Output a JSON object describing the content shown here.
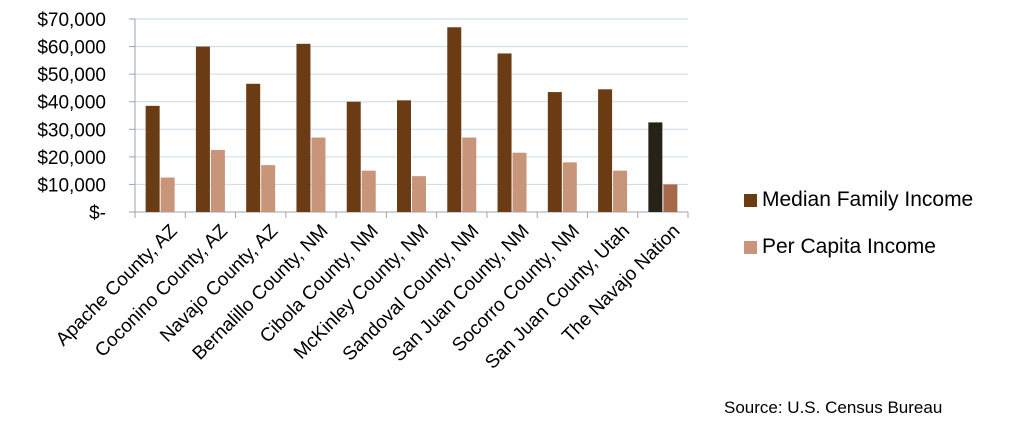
{
  "chart_data": {
    "type": "bar",
    "categories": [
      "Apache County, AZ",
      "Coconino County, AZ",
      "Navajo County, AZ",
      "Bernalillo County, NM",
      "Cibola County, NM",
      "McKinley County, NM",
      "Sandoval County, NM",
      "San Juan County, NM",
      "Socorro County, NM",
      "San Juan County, Utah",
      "The Navajo Nation"
    ],
    "series": [
      {
        "name": "Median Family Income",
        "values": [
          38500,
          60000,
          46500,
          61000,
          40000,
          40500,
          67000,
          57500,
          43500,
          44500,
          32500
        ],
        "color": "#6b3b14",
        "highlight_color": "#262217"
      },
      {
        "name": "Per Capita Income",
        "values": [
          12500,
          22500,
          17000,
          27000,
          15000,
          13000,
          27000,
          21500,
          18000,
          15000,
          10000
        ],
        "color": "#c8957a",
        "highlight_color": "#a8694a"
      }
    ],
    "highlight_category_index": 10,
    "ylim": [
      0,
      70000
    ],
    "yticks": [
      0,
      10000,
      20000,
      30000,
      40000,
      50000,
      60000,
      70000
    ],
    "ytick_labels": [
      "$-",
      "$10,000",
      "$20,000",
      "$30,000",
      "$40,000",
      "$50,000",
      "$60,000",
      "$70,000"
    ],
    "grid": true,
    "legend_position": "right",
    "xlabel": "",
    "ylabel": "",
    "title": ""
  },
  "source_note": "Source:  U.S. Census Bureau"
}
